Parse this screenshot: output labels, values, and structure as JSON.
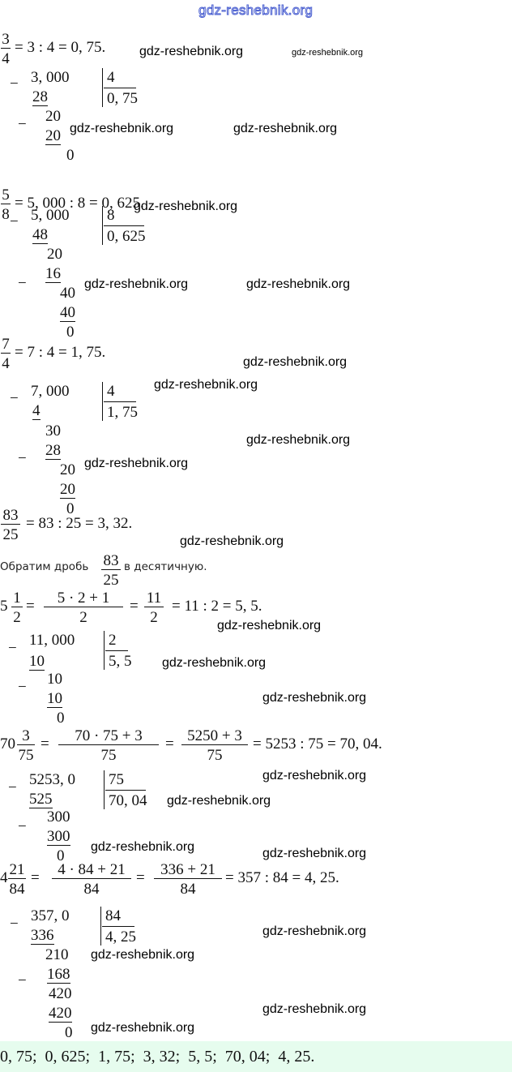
{
  "watermark": "gdz-reshebnik.org",
  "minus": "−",
  "equals": "=",
  "b1": {
    "num": "3",
    "den": "4",
    "eq": "= 3 : 4 = 0, 75.",
    "dividend": "3, 000",
    "divisor": "4",
    "quotient": "0, 75",
    "s1": "28",
    "s2": "20",
    "s3": "20",
    "s4": "0"
  },
  "b2": {
    "num": "5",
    "den": "8",
    "eq": "= 5, 000 : 8 = 0, 625.",
    "dividend": "5, 000",
    "divisor": "8",
    "quotient": "0, 625",
    "s1": "48",
    "s2": "20",
    "s3": "16",
    "s4": "40",
    "s5": "40",
    "s6": "0"
  },
  "b3": {
    "num": "7",
    "den": "4",
    "eq": "= 7 : 4 = 1, 75.",
    "dividend": "7, 000",
    "divisor": "4",
    "quotient": "1, 75",
    "s1": "4",
    "s2": "30",
    "s3": "28",
    "s4": "20",
    "s5": "20",
    "s6": "0"
  },
  "b4": {
    "num": "83",
    "den": "25",
    "eq": "= 83 : 25 = 3, 32.",
    "text_before": "Обратим дробь",
    "text_after": "в десятичную.",
    "inline_num": "83",
    "inline_den": "25"
  },
  "b5": {
    "whole": "5",
    "f1n": "1",
    "f1d": "2",
    "f2n": "5 · 2 + 1",
    "f2d": "2",
    "f3n": "11",
    "f3d": "2",
    "tail": "= 11 : 2 = 5, 5.",
    "dividend": "11, 000",
    "divisor": "2",
    "quotient": "5, 5",
    "s1": "10",
    "s2": "10",
    "s3": "10",
    "s4": "0"
  },
  "b6": {
    "whole": "70",
    "f1n": "3",
    "f1d": "75",
    "f2n": "70 · 75 + 3",
    "f2d": "75",
    "f3n": "5250 + 3",
    "f3d": "75",
    "tail": "= 5253 : 75 = 70, 04.",
    "dividend": "5253, 0",
    "divisor": "75",
    "quotient": "70, 04",
    "s1": "525",
    "s2": "300",
    "s3": "300",
    "s4": "0"
  },
  "b7": {
    "whole": "4",
    "f1n": "21",
    "f1d": "84",
    "f2n": "4 · 84 + 21",
    "f2d": "84",
    "f3n": "336 + 21",
    "f3d": "84",
    "tail": "= 357 : 84 = 4, 25.",
    "dividend": "357, 0",
    "divisor": "84",
    "quotient": "4, 25",
    "s1": "336",
    "s2": "210",
    "s3": "168",
    "s4": "420",
    "s5": "420",
    "s6": "0"
  },
  "answer": "0, 75;  0, 625;  1, 75;  3, 32;  5, 5;  70, 04;  4, 25.",
  "colors": {
    "answer_bg": "#e6fcee",
    "watermark_top": "#4a5fd0"
  }
}
